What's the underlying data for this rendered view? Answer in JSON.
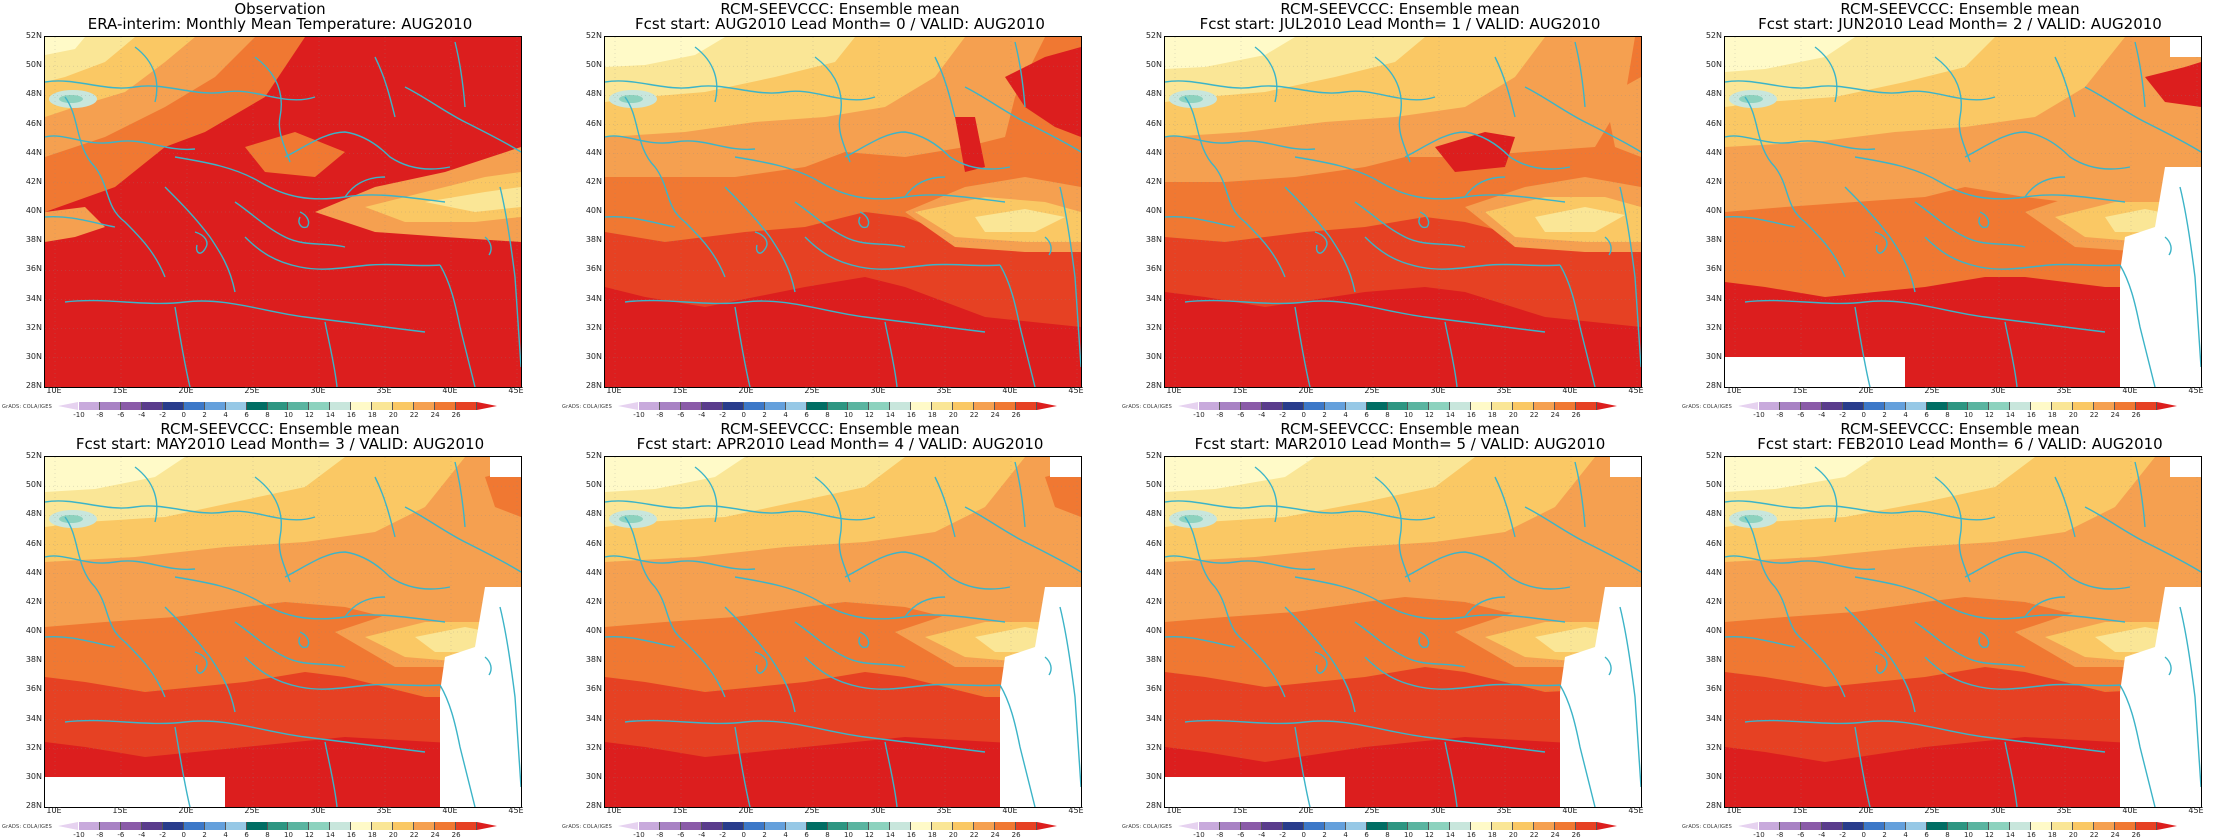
{
  "panels": [
    {
      "id": "obs",
      "title1": "Observation",
      "title2": "ERA-interim:  Monthly Mean Temperature: AUG2010",
      "variant": 0,
      "mask_east": false,
      "mask_sw": false
    },
    {
      "id": "lead0",
      "title1": "RCM-SEEVCCC: Ensemble mean",
      "title2": "Fcst start: AUG2010   Lead Month= 0 / VALID: AUG2010",
      "variant": 1,
      "mask_east": false,
      "mask_sw": false
    },
    {
      "id": "lead1",
      "title1": "RCM-SEEVCCC: Ensemble mean",
      "title2": "Fcst start: JUL2010   Lead Month= 1 / VALID: AUG2010",
      "variant": 2,
      "mask_east": false,
      "mask_sw": false
    },
    {
      "id": "lead2",
      "title1": "RCM-SEEVCCC: Ensemble mean",
      "title2": "Fcst start: JUN2010   Lead Month= 2 / VALID: AUG2010",
      "variant": 3,
      "mask_east": true,
      "mask_sw": true
    },
    {
      "id": "lead3",
      "title1": "RCM-SEEVCCC: Ensemble mean",
      "title2": "Fcst start: MAY2010   Lead Month= 3 / VALID: AUG2010",
      "variant": 4,
      "mask_east": true,
      "mask_sw": true
    },
    {
      "id": "lead4",
      "title1": "RCM-SEEVCCC: Ensemble mean",
      "title2": "Fcst start: APR2010   Lead Month= 4 / VALID: AUG2010",
      "variant": 4,
      "mask_east": true,
      "mask_sw": false
    },
    {
      "id": "lead5",
      "title1": "RCM-SEEVCCC: Ensemble mean",
      "title2": "Fcst start: MAR2010   Lead Month= 5 / VALID: AUG2010",
      "variant": 5,
      "mask_east": true,
      "mask_sw": true
    },
    {
      "id": "lead6",
      "title1": "RCM-SEEVCCC: Ensemble mean",
      "title2": "Fcst start: FEB2010   Lead Month= 6 / VALID: AUG2010",
      "variant": 5,
      "mask_east": true,
      "mask_sw": false
    }
  ],
  "y_ticks": [
    "52N",
    "50N",
    "48N",
    "46N",
    "44N",
    "42N",
    "40N",
    "38N",
    "36N",
    "34N",
    "32N",
    "30N",
    "28N"
  ],
  "x_ticks": [
    "10E",
    "15E",
    "20E",
    "25E",
    "30E",
    "35E",
    "40E",
    "45E"
  ],
  "colorbar": {
    "labels": [
      "-10",
      "-8",
      "-6",
      "-4",
      "-2",
      "0",
      "2",
      "4",
      "6",
      "8",
      "10",
      "12",
      "14",
      "16",
      "18",
      "20",
      "22",
      "24",
      "26"
    ],
    "colors": [
      "#e6d2f0",
      "#c8aadc",
      "#a882c4",
      "#8a5aa8",
      "#5a3c8c",
      "#283c8c",
      "#3c78c8",
      "#64a0dc",
      "#96c8e6",
      "#006e64",
      "#2d9682",
      "#5ab4a0",
      "#8cd2be",
      "#c8e6dc",
      "#fffac8",
      "#fae696",
      "#fac864",
      "#f5a050",
      "#f07832",
      "#e64123",
      "#dc1e1e"
    ]
  },
  "credit": "GrADS: COLA/IGES",
  "colors": {
    "coast": "#3cb4c8",
    "land_bg": "#f5a050"
  }
}
